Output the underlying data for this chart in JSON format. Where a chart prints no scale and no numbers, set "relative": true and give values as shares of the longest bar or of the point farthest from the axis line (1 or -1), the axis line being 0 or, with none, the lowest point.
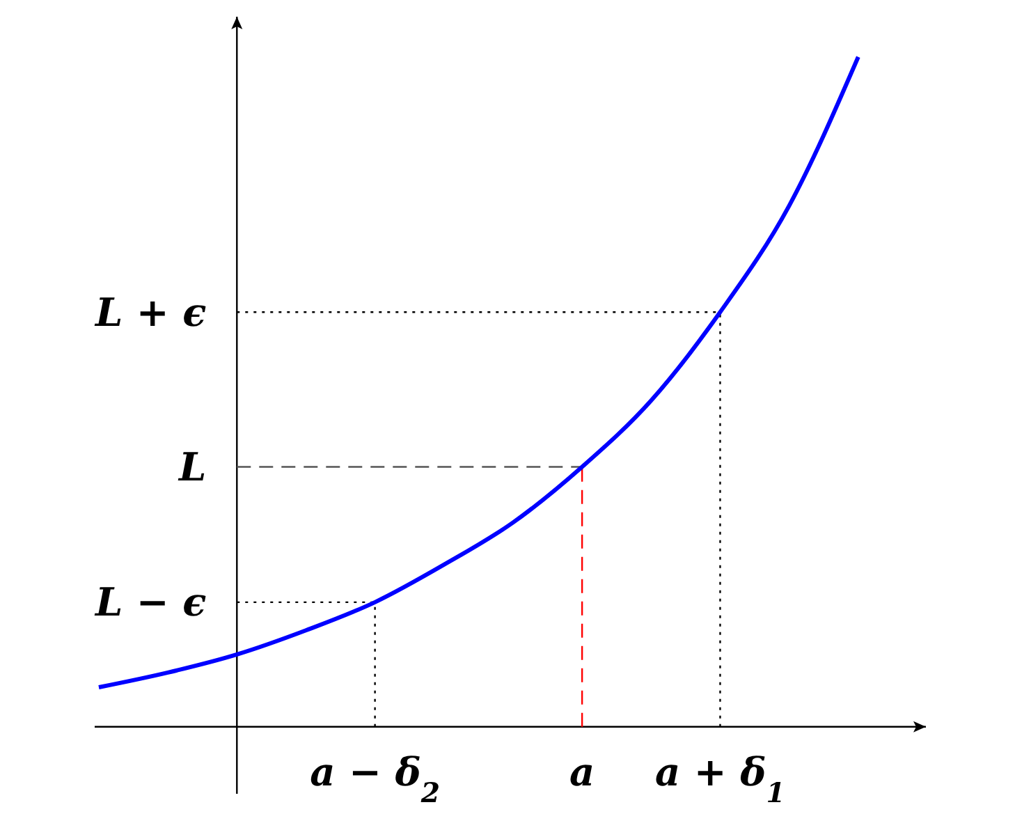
{
  "chart_data": {
    "type": "line",
    "relative": true,
    "categories": [
      null,
      null,
      null,
      null,
      "a − δ$_{2}$",
      null,
      null,
      "a",
      null,
      "a + δ$_{1}$",
      null,
      null
    ],
    "series": [
      {
        "color": "#0000ff",
        "values": [
          0.059,
          0.081,
          0.108,
          0.144,
          0.186,
          0.242,
          0.305,
          0.388,
          0.487,
          0.619,
          0.778,
          1
        ]
      }
    ],
    "ref_lines": [
      {
        "axis": "y",
        "value": 0.619,
        "label": "L + ϵ",
        "line_style": "dotted",
        "color": "#000000"
      },
      {
        "axis": "y",
        "value": 0.388,
        "label": "L",
        "line_style": "dashed",
        "color": "#555555"
      },
      {
        "axis": "y",
        "value": 0.186,
        "label": "L − ϵ",
        "line_style": "dotted",
        "color": "#000000"
      },
      {
        "axis": "x",
        "value": "a − δ$_{2}$",
        "line_style": "dotted",
        "color": "#000000"
      },
      {
        "axis": "x",
        "value": "a",
        "line_style": "dashed",
        "color": "#ff0000"
      },
      {
        "axis": "x",
        "value": "a + δ$_{1}$",
        "line_style": "dotted",
        "color": "#000000"
      }
    ],
    "line_style": "solid",
    "marker": "none",
    "legend": false
  }
}
